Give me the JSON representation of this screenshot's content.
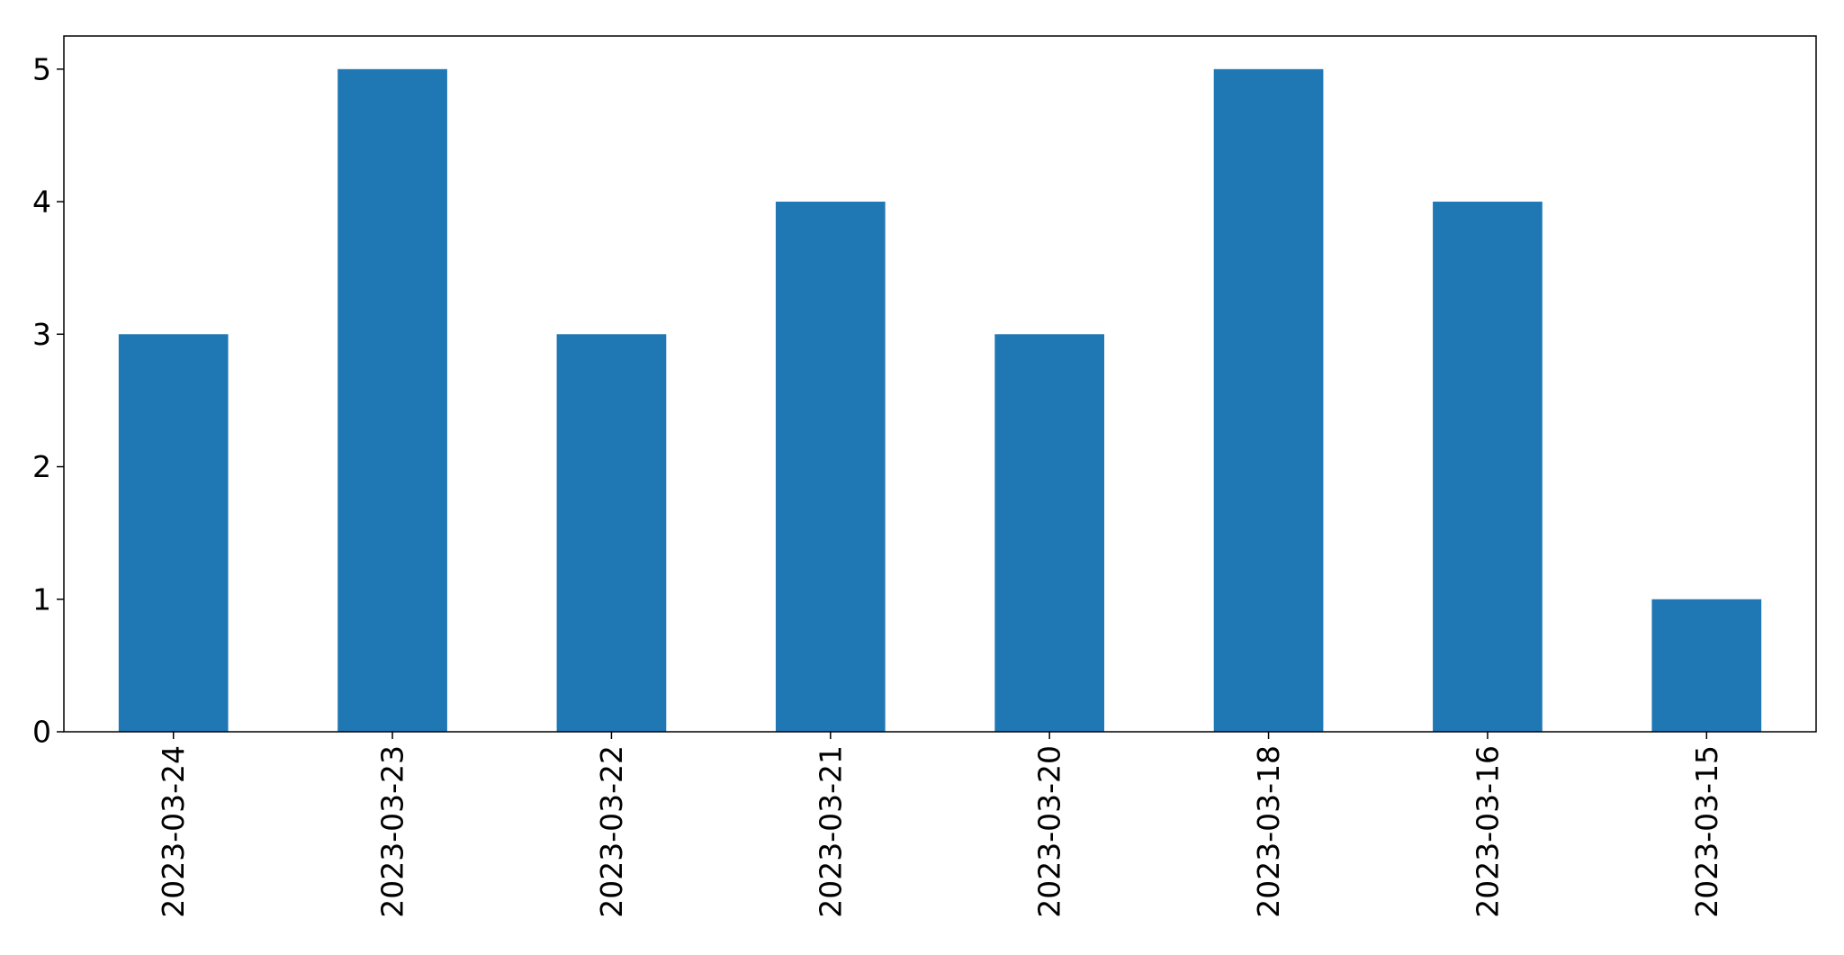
{
  "chart_data": {
    "type": "bar",
    "title": "",
    "xlabel": "",
    "ylabel": "",
    "categories": [
      "2023-03-24",
      "2023-03-23",
      "2023-03-22",
      "2023-03-21",
      "2023-03-20",
      "2023-03-18",
      "2023-03-16",
      "2023-03-15"
    ],
    "values": [
      3,
      5,
      3,
      4,
      3,
      5,
      4,
      1
    ],
    "ylim": [
      0,
      5.25
    ],
    "yticks": [
      0,
      1,
      2,
      3,
      4,
      5
    ],
    "grid": false,
    "legend": "none",
    "bar_color": "#1f77b4"
  }
}
